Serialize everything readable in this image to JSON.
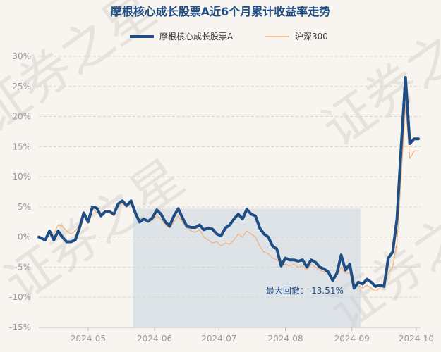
{
  "chart_data": {
    "type": "line",
    "title": "摩根核心成长股票A近6个月累计收益率走势",
    "watermark": "证券之星",
    "xlabel": "",
    "ylabel": "",
    "y_tick_labels": [
      "30%",
      "25%",
      "20%",
      "15%",
      "10%",
      "5%",
      "0%",
      "-5%",
      "-10%",
      "-15%"
    ],
    "y_ticks": [
      30,
      25,
      20,
      15,
      10,
      5,
      0,
      -5,
      -10,
      -15
    ],
    "ylim": [
      -15,
      30
    ],
    "x_tick_labels": [
      "2024-05",
      "2024-06",
      "2024-07",
      "2024-08",
      "2024-09",
      "2024-10"
    ],
    "x_ticks": [
      23,
      54,
      84,
      115,
      146,
      176
    ],
    "xlim": [
      0,
      178
    ],
    "legend_position": "top-center",
    "grid": "horizontal dashed",
    "series": [
      {
        "name": "摩根核心成长股票A",
        "color": "#1f4e86",
        "x": [
          0,
          3,
          5,
          7,
          9,
          11,
          13,
          15,
          17,
          19,
          21,
          23,
          25,
          27,
          29,
          31,
          33,
          35,
          37,
          39,
          41,
          43,
          45,
          47,
          49,
          51,
          53,
          55,
          57,
          59,
          61,
          63,
          65,
          67,
          69,
          71,
          73,
          75,
          77,
          79,
          81,
          83,
          85,
          87,
          89,
          91,
          93,
          95,
          97,
          99,
          101,
          103,
          105,
          107,
          109,
          111,
          113,
          115,
          117,
          119,
          121,
          123,
          125,
          127,
          129,
          131,
          133,
          135,
          137,
          139,
          141,
          143,
          145,
          147,
          149,
          151,
          153,
          155,
          157,
          159,
          161,
          163,
          165,
          167,
          169,
          171,
          173,
          175,
          177
        ],
        "values": [
          0,
          -0.5,
          1,
          -0.5,
          1,
          0,
          -0.8,
          -0.8,
          -0.5,
          1.5,
          4,
          2.5,
          5,
          4.8,
          3.5,
          4.2,
          4.2,
          3.8,
          5.5,
          6,
          5.2,
          6,
          4,
          2.5,
          3,
          2.6,
          3.2,
          4.5,
          3.8,
          2.5,
          1.8,
          3.5,
          4.7,
          3.2,
          1.8,
          1.6,
          1.6,
          2,
          1.2,
          1.5,
          1.3,
          0.5,
          0.2,
          1.5,
          2,
          3,
          3.8,
          3,
          4.6,
          3.8,
          3.5,
          1.5,
          0.5,
          0,
          -1.5,
          -2,
          -4.8,
          -3.5,
          -3.8,
          -3.8,
          -4,
          -3.8,
          -5,
          -3.8,
          -4.2,
          -5,
          -5.3,
          -5.8,
          -7.2,
          -6,
          -3,
          -5.5,
          -4.5,
          -8.5,
          -7.5,
          -7.8,
          -7,
          -7.5,
          -8.2,
          -8,
          -8.2,
          -3.5,
          -2.5,
          3,
          15,
          26.5,
          15.5,
          16.3,
          16.3
        ],
        "max_drawdown_label": "最大回撤：-13.51%"
      },
      {
        "name": "沪深300",
        "color": "#f4b07a",
        "x": [
          0,
          3,
          5,
          7,
          9,
          11,
          13,
          15,
          17,
          19,
          21,
          23,
          25,
          27,
          29,
          31,
          33,
          35,
          37,
          39,
          41,
          43,
          45,
          47,
          49,
          51,
          53,
          55,
          57,
          59,
          61,
          63,
          65,
          67,
          69,
          71,
          73,
          75,
          77,
          79,
          81,
          83,
          85,
          87,
          89,
          91,
          93,
          95,
          97,
          99,
          101,
          103,
          105,
          107,
          109,
          111,
          113,
          115,
          117,
          119,
          121,
          123,
          125,
          127,
          129,
          131,
          133,
          135,
          137,
          139,
          141,
          143,
          145,
          147,
          149,
          151,
          153,
          155,
          157,
          159,
          161,
          163,
          165,
          167,
          169,
          171,
          173,
          175,
          177
        ],
        "values": [
          0,
          -0.3,
          1.2,
          0.5,
          2,
          1.8,
          1,
          0.5,
          1,
          2,
          3.5,
          3,
          4.8,
          4,
          4,
          4.3,
          4,
          3.5,
          5,
          5.5,
          5,
          5.5,
          4,
          3,
          3.2,
          2.5,
          2.8,
          3.5,
          3,
          2,
          1.5,
          2.5,
          3.5,
          2.5,
          1.5,
          1,
          0.8,
          1.2,
          0,
          -0.5,
          -1,
          -0.8,
          -1.5,
          -1,
          -1.2,
          -0.5,
          0.5,
          0,
          1,
          0.5,
          0,
          -1.5,
          -2.5,
          -2.8,
          -3.5,
          -3.8,
          -4.5,
          -4.5,
          -4.8,
          -4.5,
          -5,
          -4.8,
          -5.5,
          -4.5,
          -5,
          -5.5,
          -5.8,
          -6,
          -7,
          -6.5,
          -5,
          -6,
          -6,
          -8.5,
          -8,
          -8.5,
          -8,
          -8.5,
          -9,
          -8.5,
          -8,
          -6,
          -5,
          -1,
          10,
          22,
          13,
          14.3,
          14.3
        ]
      }
    ],
    "drawdown_region": {
      "x_start": 44,
      "x_end": 150
    }
  }
}
